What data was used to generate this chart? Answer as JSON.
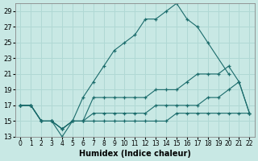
{
  "xlabel": "Humidex (Indice chaleur)",
  "bg_color": "#c8e8e4",
  "grid_color": "#b0d8d4",
  "line_color": "#1a6b6b",
  "xlim_min": -0.5,
  "xlim_max": 22.5,
  "ylim_min": 13,
  "ylim_max": 30,
  "xticks": [
    0,
    1,
    2,
    3,
    4,
    5,
    6,
    7,
    8,
    9,
    10,
    11,
    12,
    13,
    14,
    15,
    16,
    17,
    18,
    19,
    20,
    21,
    22
  ],
  "yticks": [
    13,
    15,
    17,
    19,
    21,
    23,
    25,
    27,
    29
  ],
  "series": [
    {
      "x": [
        0,
        1,
        2,
        3,
        4,
        5,
        6,
        7,
        8,
        9,
        10,
        11,
        12,
        13,
        14,
        15,
        16,
        17,
        18,
        19,
        20,
        21,
        22
      ],
      "y": [
        17,
        17,
        15,
        15,
        14,
        15,
        18,
        20,
        22,
        24,
        25,
        26,
        28,
        28,
        29,
        30,
        28,
        27,
        25,
        null,
        21,
        null,
        null
      ]
    },
    {
      "x": [
        0,
        1,
        2,
        3,
        4,
        5,
        6,
        7,
        8,
        9,
        10,
        11,
        12,
        13,
        14,
        15,
        16,
        17,
        18,
        19,
        20,
        21,
        22
      ],
      "y": [
        17,
        17,
        15,
        15,
        13,
        15,
        15,
        18,
        18,
        18,
        18,
        18,
        18,
        19,
        19,
        19,
        20,
        21,
        21,
        21,
        22,
        20,
        16
      ]
    },
    {
      "x": [
        0,
        1,
        2,
        3,
        4,
        5,
        6,
        7,
        8,
        9,
        10,
        11,
        12,
        13,
        14,
        15,
        16,
        17,
        18,
        19,
        20,
        21,
        22
      ],
      "y": [
        17,
        17,
        15,
        15,
        14,
        15,
        15,
        16,
        16,
        16,
        16,
        16,
        16,
        17,
        17,
        17,
        17,
        17,
        18,
        18,
        19,
        20,
        16
      ]
    },
    {
      "x": [
        0,
        1,
        2,
        3,
        4,
        5,
        6,
        7,
        8,
        9,
        10,
        11,
        12,
        13,
        14,
        15,
        16,
        17,
        18,
        19,
        20,
        21,
        22
      ],
      "y": [
        17,
        17,
        15,
        15,
        14,
        15,
        15,
        15,
        15,
        15,
        15,
        15,
        15,
        15,
        15,
        16,
        16,
        16,
        16,
        16,
        16,
        16,
        16
      ]
    }
  ]
}
